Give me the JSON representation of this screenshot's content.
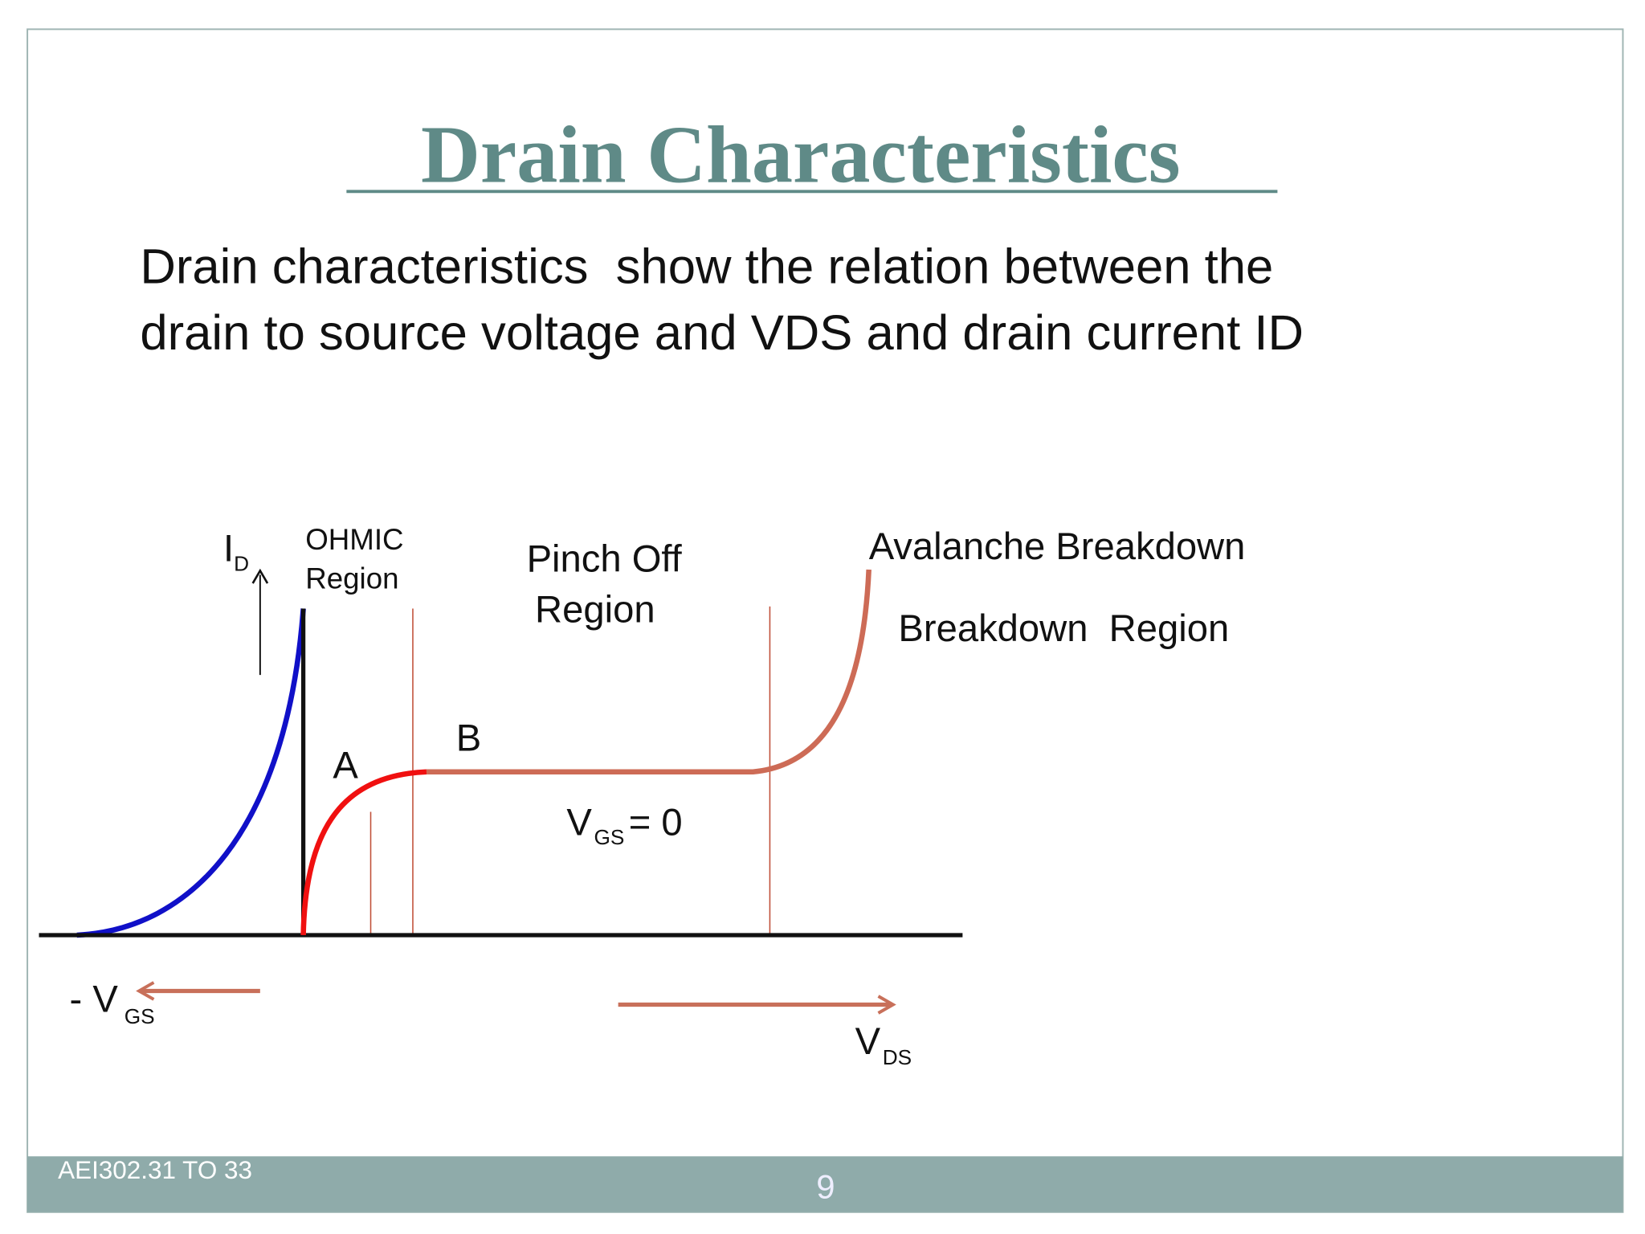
{
  "header": {
    "title": "Drain Characteristics "
  },
  "body": {
    "lines": [
      "Drain characteristics  show the relation between the",
      "drain to source voltage and VDS and drain current ID"
    ]
  },
  "diagram": {
    "id_label": {
      "main": "I",
      "sub": "D"
    },
    "ohmic": [
      "OHMIC",
      "Region"
    ],
    "pinch_off": [
      "Pinch Off",
      "Region"
    ],
    "avalanche": "Avalanche Breakdown",
    "breakdown": "Breakdown  Region",
    "point_a": "A",
    "point_b": "B",
    "vgs_zero": {
      "main": "V",
      "sub": "GS",
      "rest": "= 0"
    },
    "neg_vgs": {
      "main": "- V",
      "sub": "GS"
    },
    "vds": {
      "main": "V",
      "sub": "DS"
    }
  },
  "footer": {
    "code": "AEI302.31 TO 33",
    "page": "9"
  }
}
